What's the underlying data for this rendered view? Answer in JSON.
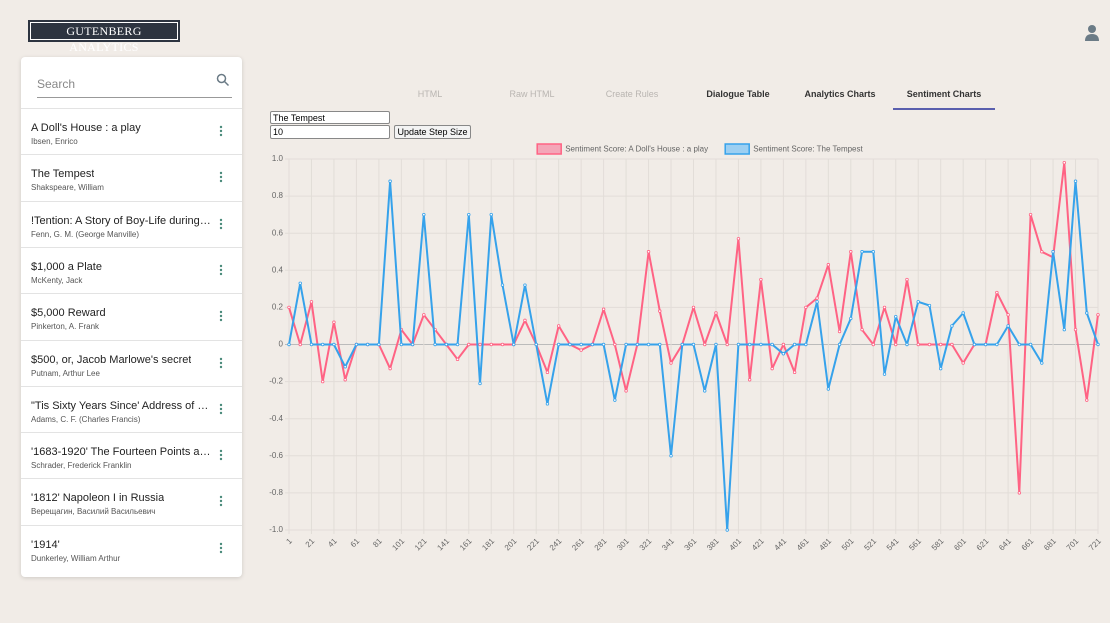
{
  "header": {
    "brand": "GUTENBERG ANALYTICS"
  },
  "sidebar": {
    "search_placeholder": "Search",
    "books": [
      {
        "title": "A Doll's House : a play",
        "author": "Ibsen, Enrico"
      },
      {
        "title": "The Tempest",
        "author": "Shakspeare, William"
      },
      {
        "title": "!Tention: A Story of Boy-Life during th...",
        "author": "Fenn, G. M. (George Manville)"
      },
      {
        "title": "$1,000 a Plate",
        "author": "McKenty, Jack"
      },
      {
        "title": "$5,000 Reward",
        "author": "Pinkerton, A. Frank"
      },
      {
        "title": "$500, or, Jacob Marlowe's secret",
        "author": "Putnam, Arthur Lee"
      },
      {
        "title": "\"Tis Sixty Years Since' Address of Ch...",
        "author": "Adams, C. F. (Charles Francis)"
      },
      {
        "title": "'1683-1920' The Fourteen Points and ...",
        "author": "Schrader, Frederick Franklin"
      },
      {
        "title": "'1812' Napoleon I in Russia",
        "author": "Верещагин, Василий Васильевич"
      },
      {
        "title": "'1914'",
        "author": "Dunkerley, William Arthur"
      }
    ]
  },
  "tabs": [
    {
      "label": "HTML",
      "enabled": false
    },
    {
      "label": "Raw HTML",
      "enabled": false
    },
    {
      "label": "Create Rules",
      "enabled": false
    },
    {
      "label": "Dialogue Table",
      "enabled": true
    },
    {
      "label": "Analytics Charts",
      "enabled": true
    },
    {
      "label": "Sentiment Charts",
      "enabled": true
    }
  ],
  "active_tab": 5,
  "controls": {
    "book_select": "The Tempest",
    "step_size": "10",
    "update_button": "Update Step Size"
  },
  "chart_data": {
    "type": "line",
    "x": [
      1,
      11,
      21,
      31,
      41,
      51,
      61,
      71,
      81,
      91,
      101,
      111,
      121,
      131,
      141,
      151,
      161,
      171,
      181,
      191,
      201,
      211,
      221,
      231,
      241,
      251,
      261,
      271,
      281,
      291,
      301,
      311,
      321,
      331,
      341,
      351,
      361,
      371,
      381,
      391,
      401,
      411,
      421,
      431,
      441,
      451,
      461,
      471,
      481,
      491,
      501,
      511,
      521,
      531,
      541,
      551,
      561,
      571,
      581,
      591,
      601,
      611,
      621,
      631,
      641,
      651,
      661,
      671,
      681,
      691,
      701,
      711,
      721
    ],
    "series": [
      {
        "name": "Sentiment Score: A Doll's House : a play",
        "color": "#ff6384",
        "fill": "#f4a6b8",
        "values": [
          0.2,
          0,
          0.23,
          -0.2,
          0.12,
          -0.19,
          0,
          0,
          0,
          -0.13,
          0.08,
          0,
          0.16,
          0.08,
          0,
          -0.08,
          0,
          0,
          0,
          0,
          0,
          0.13,
          0,
          -0.15,
          0.1,
          0,
          -0.03,
          0,
          0.19,
          0,
          -0.25,
          0,
          0.5,
          0.18,
          -0.1,
          0,
          0.2,
          0,
          0.17,
          0,
          0.57,
          -0.19,
          0.35,
          -0.13,
          0,
          -0.15,
          0.2,
          0.25,
          0.43,
          0.07,
          0.5,
          0.08,
          0,
          0.2,
          0,
          0.35,
          0,
          0,
          0,
          0,
          -0.1,
          0,
          0,
          0.28,
          0.16,
          -0.8,
          0.7,
          0.5,
          0.47,
          0.98,
          0.08,
          -0.3,
          0.16
        ]
      },
      {
        "name": "Sentiment Score: The Tempest",
        "color": "#36a2eb",
        "fill": "#9ccff2",
        "values": [
          0,
          0.33,
          0,
          0,
          0,
          -0.12,
          0,
          0,
          0,
          0.88,
          0,
          0,
          0.7,
          0,
          0,
          0,
          0.7,
          -0.21,
          0.7,
          0.32,
          0,
          0.32,
          0,
          -0.32,
          0,
          0,
          0,
          0,
          0,
          -0.3,
          0,
          0,
          0,
          0,
          -0.6,
          0,
          0,
          -0.25,
          0,
          -1,
          0,
          0,
          0,
          0,
          -0.05,
          0,
          0,
          0.23,
          -0.24,
          0,
          0.14,
          0.5,
          0.5,
          -0.16,
          0.15,
          0,
          0.23,
          0.21,
          -0.13,
          0.1,
          0.17,
          0,
          0,
          0,
          0.1,
          0,
          0,
          -0.1,
          0.5,
          0.08,
          0.88,
          0.17,
          0
        ]
      }
    ],
    "xlim": [
      1,
      721
    ],
    "xticks": [
      1,
      21,
      41,
      61,
      81,
      101,
      121,
      141,
      161,
      181,
      201,
      221,
      241,
      261,
      281,
      301,
      321,
      341,
      361,
      381,
      401,
      421,
      441,
      461,
      481,
      501,
      521,
      541,
      561,
      581,
      601,
      621,
      641,
      661,
      681,
      701,
      721
    ],
    "ylim": [
      -1,
      1
    ],
    "yticks": [
      {
        "value": -1,
        "label": "-1.0"
      },
      -0.8,
      -0.6,
      -0.4,
      -0.2,
      0,
      0.2,
      0.4,
      0.6,
      0.8,
      {
        "value": 1,
        "label": "1.0"
      }
    ],
    "grid": true,
    "legend": "top"
  }
}
